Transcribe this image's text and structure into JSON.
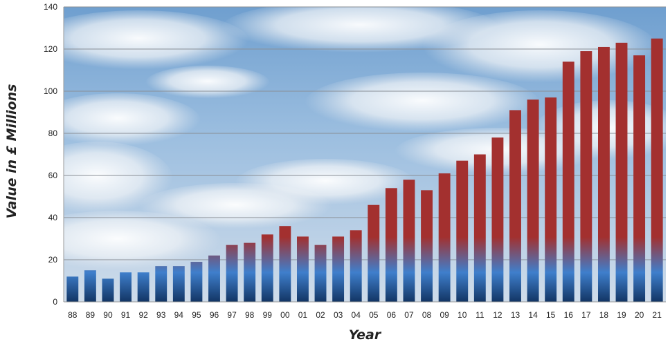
{
  "chart_data": {
    "type": "bar",
    "xlabel": "Year",
    "ylabel": "Value in £ Millions",
    "ylim": [
      0,
      140
    ],
    "yticks": [
      0,
      20,
      40,
      60,
      80,
      100,
      120,
      140
    ],
    "grid": true,
    "legend": "none",
    "categories": [
      "88",
      "89",
      "90",
      "91",
      "92",
      "93",
      "94",
      "95",
      "96",
      "97",
      "98",
      "99",
      "00",
      "01",
      "02",
      "03",
      "04",
      "05",
      "06",
      "07",
      "08",
      "09",
      "10",
      "11",
      "12",
      "13",
      "14",
      "15",
      "16",
      "17",
      "18",
      "19",
      "20",
      "21"
    ],
    "values": [
      12,
      15,
      11,
      14,
      14,
      17,
      17,
      19,
      22,
      27,
      28,
      32,
      36,
      31,
      27,
      31,
      34,
      46,
      54,
      58,
      53,
      61,
      67,
      70,
      78,
      91,
      96,
      97,
      114,
      119,
      121,
      123,
      117,
      125
    ],
    "colors": {
      "bar_top": "#a3302f",
      "bar_mid": "#3f7fcc",
      "bar_bottom": "#123564",
      "grid": "#8a8f96"
    }
  }
}
